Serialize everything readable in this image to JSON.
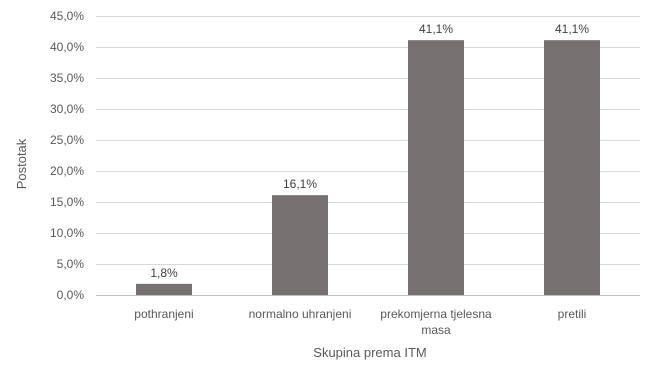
{
  "chart_data": {
    "type": "bar",
    "categories": [
      "pothranjeni",
      "normalno uhranjeni",
      "prekomjerna tjelesna masa",
      "pretili"
    ],
    "category_lines": [
      [
        "pothranjeni"
      ],
      [
        "normalno uhranjeni"
      ],
      [
        "prekomjerna tjelesna",
        "masa"
      ],
      [
        "pretili"
      ]
    ],
    "values": [
      1.8,
      16.1,
      41.1,
      41.1
    ],
    "data_labels": [
      "1,8%",
      "16,1%",
      "41,1%",
      "41,1%"
    ],
    "title": "",
    "xlabel": "Skupina prema ITM",
    "ylabel": "Postotak",
    "ylim": [
      0,
      45
    ],
    "yticks": [
      0,
      5,
      10,
      15,
      20,
      25,
      30,
      35,
      40,
      45
    ],
    "ytick_labels": [
      "0,0%",
      "5,0%",
      "10,0%",
      "15,0%",
      "20,0%",
      "25,0%",
      "30,0%",
      "35,0%",
      "40,0%",
      "45,0%"
    ],
    "grid": true,
    "legend": "none",
    "bar_color": "#767171"
  }
}
